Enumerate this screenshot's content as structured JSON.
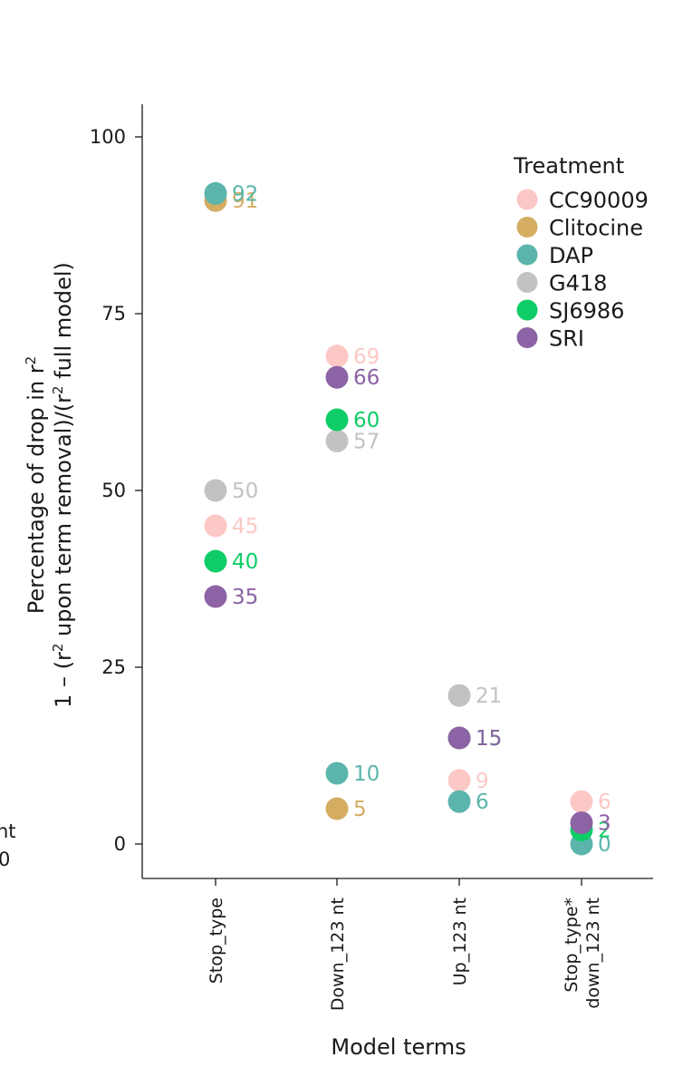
{
  "edge_fragments": [
    "nt",
    "0"
  ],
  "chart_data": {
    "type": "scatter",
    "title": "",
    "xlabel": "Model terms",
    "ylabel_line1": "Percentage of drop in r",
    "ylabel_line1_sup": "2",
    "ylabel_line2": {
      "p1": "1 – (r",
      "s1": "2",
      "p2": " upon term removal)/(r",
      "s2": "2",
      "p3": " full model)"
    },
    "ylim": [
      -5,
      105
    ],
    "yticks": [
      0,
      25,
      50,
      75,
      100
    ],
    "grid": false,
    "categories": [
      "Stop_type",
      "Down_123 nt",
      "Up_123 nt",
      "Stop_type*\ndown_123 nt"
    ],
    "legend": {
      "title": "Treatment",
      "position": "top-right"
    },
    "series": [
      {
        "name": "CC90009",
        "color": "#fcc8c6",
        "values": [
          45,
          69,
          9,
          6
        ]
      },
      {
        "name": "Clitocine",
        "color": "#d4ad62",
        "values": [
          91,
          5,
          null,
          null
        ]
      },
      {
        "name": "DAP",
        "color": "#5bb5ac",
        "values": [
          92,
          10,
          6,
          0
        ]
      },
      {
        "name": "G418",
        "color": "#c2c2c2",
        "values": [
          50,
          57,
          21,
          null
        ]
      },
      {
        "name": "SJ6986",
        "color": "#0fcd66",
        "values": [
          40,
          60,
          15,
          2
        ]
      },
      {
        "name": "SRI",
        "color": "#8c63a4",
        "values": [
          35,
          66,
          15,
          3
        ]
      }
    ]
  }
}
